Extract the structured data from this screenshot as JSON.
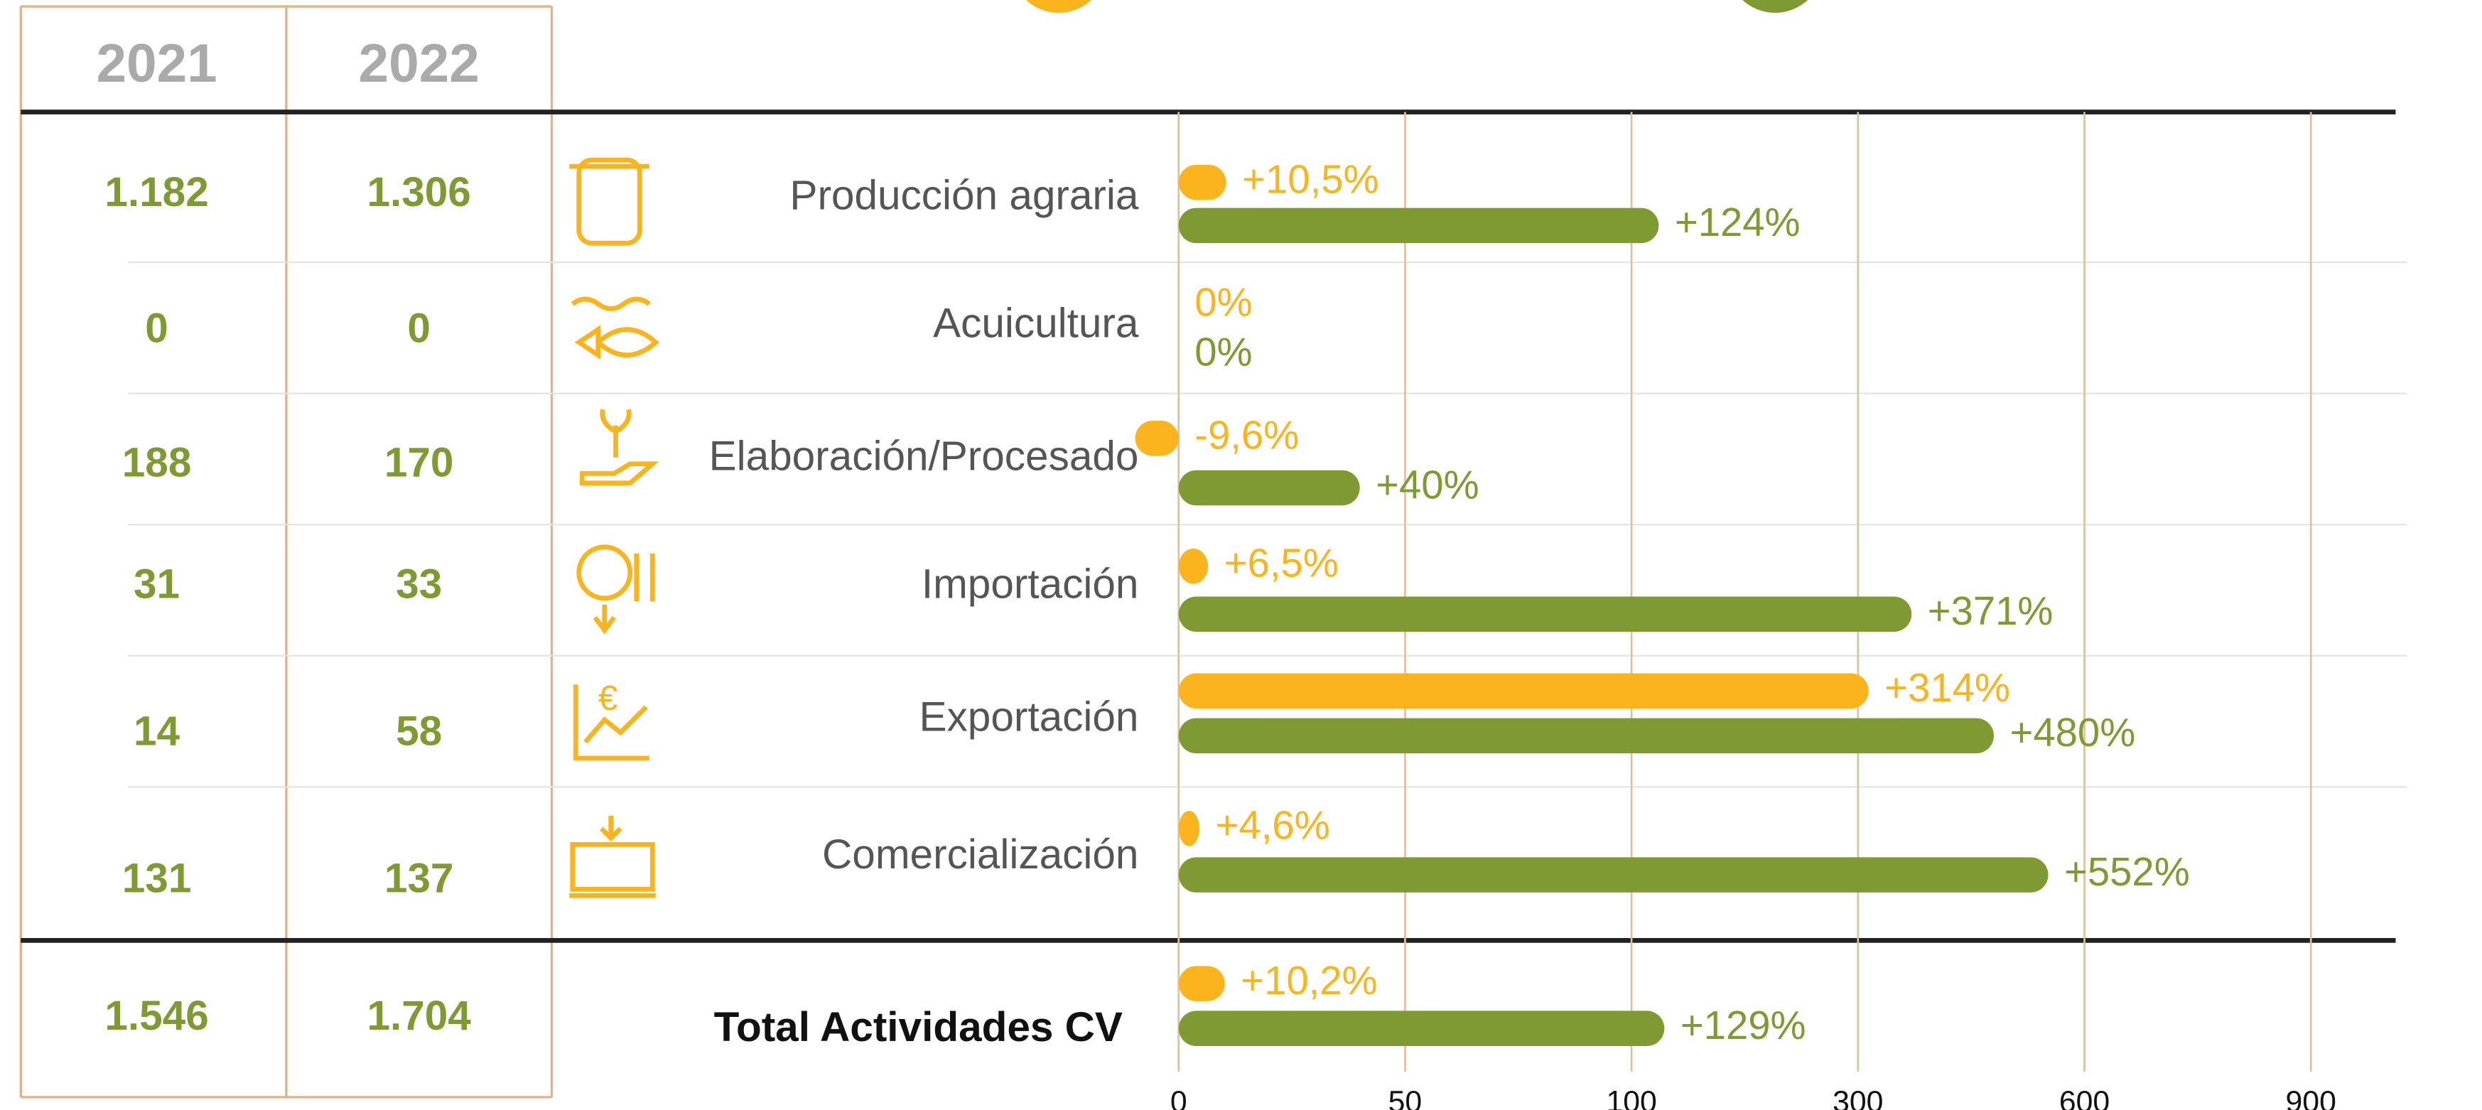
{
  "table": {
    "columns": [
      "2021",
      "2022"
    ],
    "rows": [
      [
        "1.182",
        "1.306"
      ],
      [
        "0",
        "0"
      ],
      [
        "188",
        "170"
      ],
      [
        "31",
        "33"
      ],
      [
        "14",
        "58"
      ],
      [
        "131",
        "137"
      ]
    ],
    "total": [
      "1.546",
      "1.704"
    ]
  },
  "chart_data": {
    "type": "bar",
    "orientation": "horizontal",
    "categories": [
      "Producción agraria",
      "Acuicultura",
      "Elaboración/Procesado",
      "Importación",
      "Exportación",
      "Comercialización",
      "Total Actividades CV"
    ],
    "series": [
      {
        "color": "#fbb41e",
        "values": [
          10.5,
          0,
          -9.6,
          6.5,
          314,
          4.6,
          10.2
        ],
        "value_labels": [
          "+10,5%",
          "0%",
          "-9,6%",
          "+6,5%",
          "+314%",
          "+4,6%",
          "+10,2%"
        ]
      },
      {
        "color": "#7f9a33",
        "values": [
          124,
          0,
          40,
          371,
          480,
          552,
          129
        ],
        "value_labels": [
          "+124%",
          "0%",
          "+40%",
          "+371%",
          "+480%",
          "+552%",
          "+129%"
        ]
      }
    ],
    "xlim": [
      0,
      900
    ],
    "xticks": [
      0,
      50,
      100,
      300,
      600,
      900
    ],
    "grid": true
  }
}
